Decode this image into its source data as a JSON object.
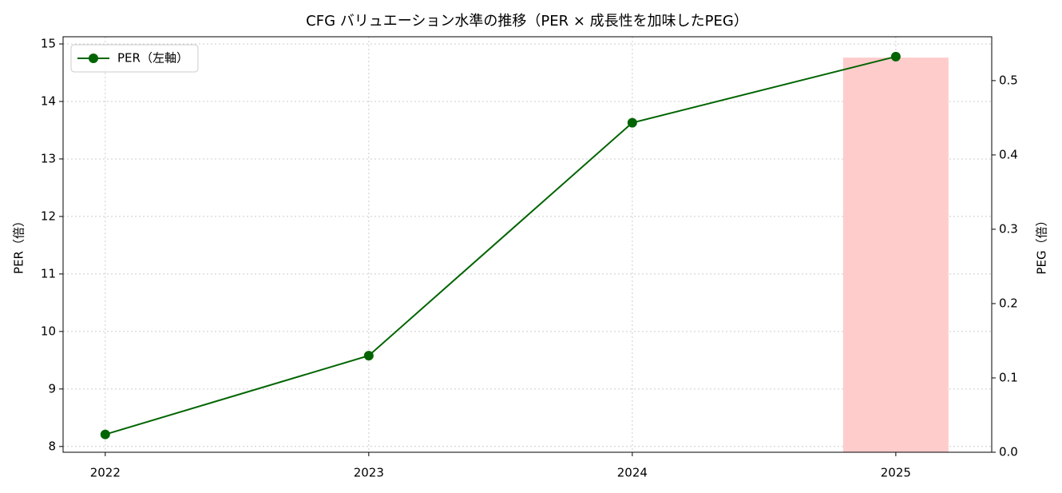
{
  "chart_data": {
    "type": "line",
    "title": "CFG バリュエーション水準の推移（PER × 成長性を加味したPEG）",
    "ylabel": "PER（倍）",
    "y2label": "PEG（倍）",
    "x": [
      2022,
      2023,
      2024,
      2025
    ],
    "xlim": [
      2021.84,
      2025.364
    ],
    "xticks": [
      2022,
      2023,
      2024,
      2025
    ],
    "ylim": [
      7.9,
      15.125
    ],
    "yticks": [
      8,
      9,
      10,
      11,
      12,
      13,
      14,
      15
    ],
    "y2lim": [
      0,
      0.559
    ],
    "y2ticks": [
      {
        "value": 0,
        "label": "0.0"
      },
      0.1,
      0.2,
      0.3,
      0.4,
      0.5
    ],
    "grid": true,
    "legend": "upper left",
    "series": [
      {
        "name": "PER（左軸）",
        "type": "line",
        "color": "#006400",
        "values": [
          8.21,
          9.58,
          13.63,
          14.78
        ]
      },
      {
        "type": "bar",
        "axis": "y2",
        "color": "#ffcccc",
        "values": [
          null,
          null,
          null,
          0.531
        ]
      }
    ]
  }
}
